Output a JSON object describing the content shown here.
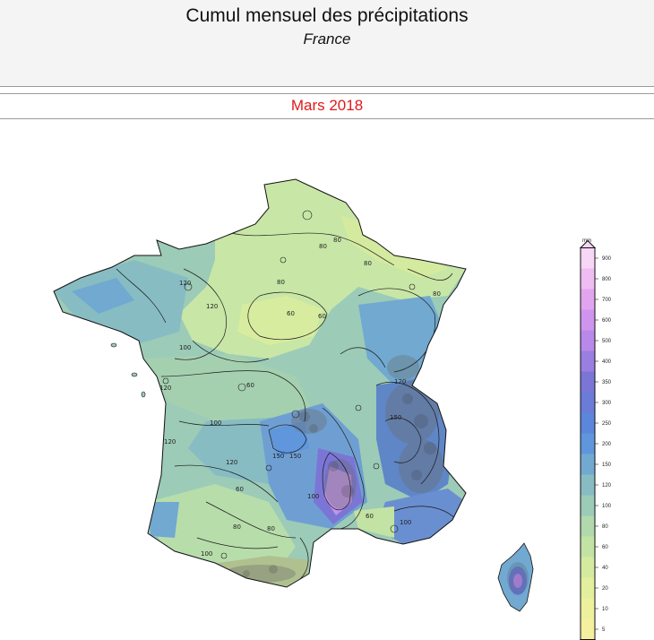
{
  "header": {
    "title": "Cumul mensuel des précipitations",
    "subtitle": "France",
    "period": "Mars 2018"
  },
  "legend": {
    "unit": "mm",
    "levels": [
      5,
      10,
      20,
      40,
      60,
      80,
      100,
      120,
      150,
      200,
      250,
      300,
      350,
      400,
      500,
      600,
      700,
      800,
      900
    ],
    "colors": [
      "#f4f09e",
      "#eef19c",
      "#e3ef9c",
      "#d4eb9f",
      "#c3e3a4",
      "#b1d9ad",
      "#9ccbb7",
      "#87bcc3",
      "#71a9d0",
      "#5f96dc",
      "#5b86dc",
      "#6b7bd8",
      "#7b76d6",
      "#9a7fe0",
      "#b889ea",
      "#cf95ee",
      "#e1a5f0",
      "#efbdf2",
      "#f8d6f6"
    ]
  },
  "contour_labels": [
    "80",
    "80",
    "80",
    "80",
    "80",
    "60",
    "60",
    "60",
    "120",
    "120",
    "120",
    "120",
    "120",
    "120",
    "100",
    "100",
    "100",
    "100",
    "150",
    "150",
    "150",
    "60",
    "80",
    "100",
    "80",
    "60"
  ]
}
